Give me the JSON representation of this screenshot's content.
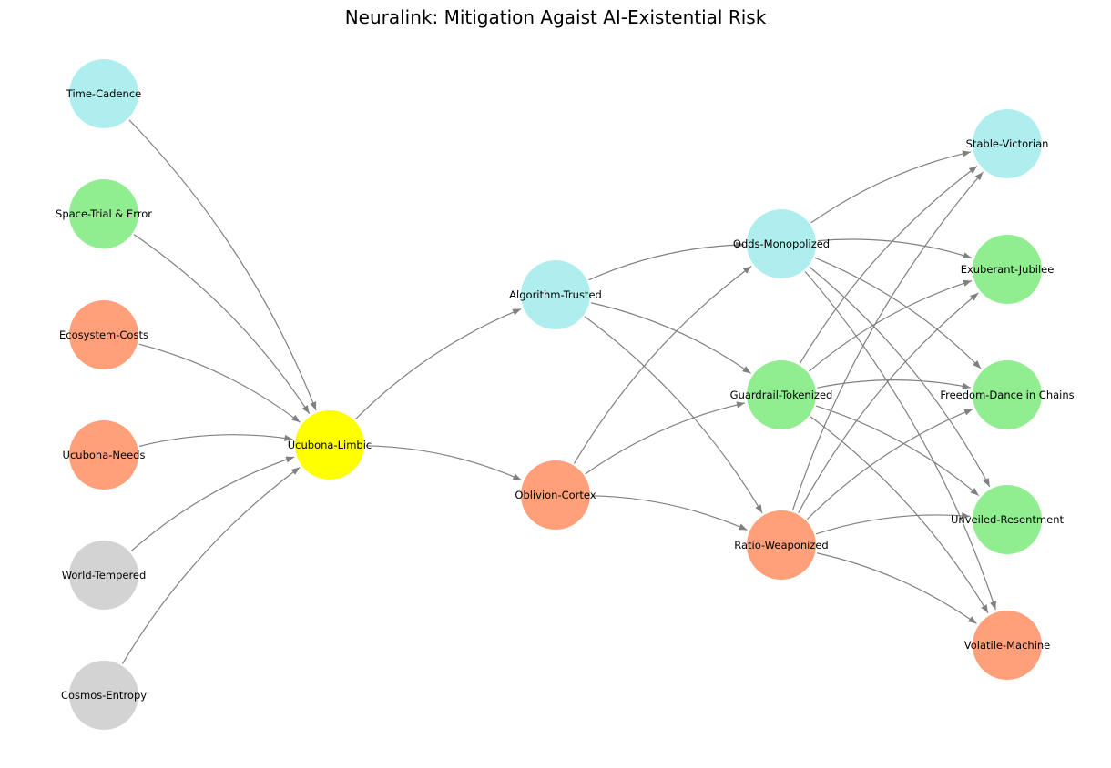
{
  "title": "Neuralink: Mitigation Agaist AI-Existential Risk",
  "colors": {
    "gray": "#d3d3d3",
    "green": "#90ee90",
    "salmon": "#ffa07a",
    "cyan": "#afeeee",
    "yellow": "#ffff00",
    "edge": "#808080"
  },
  "nodes": [
    {
      "id": "cosmos",
      "label": "Cosmos-Entropy",
      "color": "gray"
    },
    {
      "id": "world",
      "label": "World-Tempered",
      "color": "gray"
    },
    {
      "id": "needs",
      "label": "Ucubona-Needs",
      "color": "salmon"
    },
    {
      "id": "ecosystem",
      "label": "Ecosystem-Costs",
      "color": "salmon"
    },
    {
      "id": "space",
      "label": "Space-Trial & Error",
      "color": "green"
    },
    {
      "id": "time",
      "label": "Time-Cadence",
      "color": "cyan"
    },
    {
      "id": "limbic",
      "label": "Ucubona-Limbic",
      "color": "yellow"
    },
    {
      "id": "oblivion",
      "label": "Oblivion-Cortex",
      "color": "salmon"
    },
    {
      "id": "algorithm",
      "label": "Algorithm-Trusted",
      "color": "cyan"
    },
    {
      "id": "ratio",
      "label": "Ratio-Weaponized",
      "color": "salmon"
    },
    {
      "id": "guardrail",
      "label": "Guardrail-Tokenized",
      "color": "green"
    },
    {
      "id": "odds",
      "label": "Odds-Monopolized",
      "color": "cyan"
    },
    {
      "id": "volatile",
      "label": "Volatile-Machine",
      "color": "salmon"
    },
    {
      "id": "unveiled",
      "label": "Unveiled-Resentment",
      "color": "green"
    },
    {
      "id": "freedom",
      "label": "Freedom-Dance in Chains",
      "color": "green"
    },
    {
      "id": "exuberant",
      "label": "Exuberant-Jubilee",
      "color": "green"
    },
    {
      "id": "stable",
      "label": "Stable-Victorian",
      "color": "cyan"
    }
  ],
  "edges": [
    [
      "cosmos",
      "limbic"
    ],
    [
      "world",
      "limbic"
    ],
    [
      "needs",
      "limbic"
    ],
    [
      "ecosystem",
      "limbic"
    ],
    [
      "space",
      "limbic"
    ],
    [
      "time",
      "limbic"
    ],
    [
      "limbic",
      "oblivion"
    ],
    [
      "limbic",
      "algorithm"
    ],
    [
      "oblivion",
      "ratio"
    ],
    [
      "oblivion",
      "guardrail"
    ],
    [
      "oblivion",
      "odds"
    ],
    [
      "algorithm",
      "ratio"
    ],
    [
      "algorithm",
      "guardrail"
    ],
    [
      "algorithm",
      "odds"
    ],
    [
      "ratio",
      "volatile"
    ],
    [
      "ratio",
      "unveiled"
    ],
    [
      "ratio",
      "freedom"
    ],
    [
      "ratio",
      "exuberant"
    ],
    [
      "ratio",
      "stable"
    ],
    [
      "guardrail",
      "volatile"
    ],
    [
      "guardrail",
      "unveiled"
    ],
    [
      "guardrail",
      "freedom"
    ],
    [
      "guardrail",
      "exuberant"
    ],
    [
      "guardrail",
      "stable"
    ],
    [
      "odds",
      "volatile"
    ],
    [
      "odds",
      "unveiled"
    ],
    [
      "odds",
      "freedom"
    ],
    [
      "odds",
      "exuberant"
    ],
    [
      "odds",
      "stable"
    ]
  ]
}
